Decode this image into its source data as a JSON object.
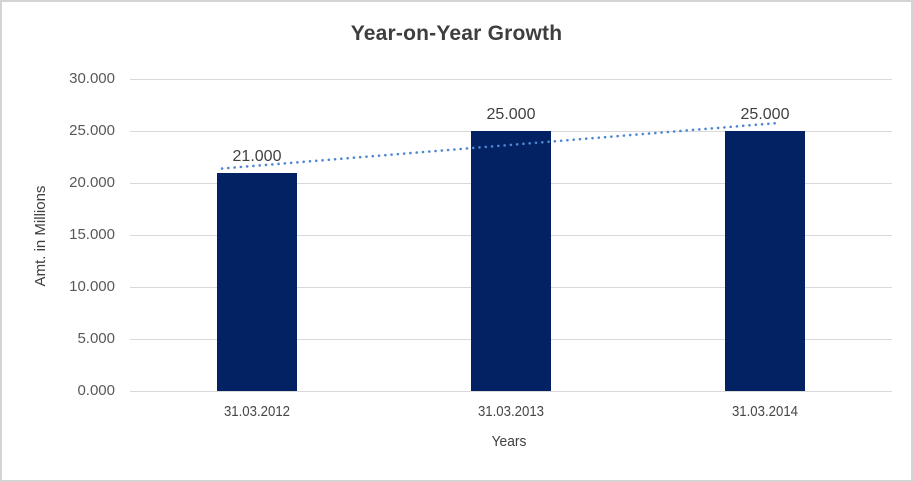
{
  "chart_data": {
    "type": "bar",
    "title": "Year-on-Year Growth",
    "xlabel": "Years",
    "ylabel": "Amt. in Millions",
    "categories": [
      "31.03.2012",
      "31.03.2013",
      "31.03.2014"
    ],
    "values": [
      21.0,
      25.0,
      25.0
    ],
    "data_labels": [
      "21.000",
      "25.000",
      "25.000"
    ],
    "y_ticks": [
      "30.000",
      "25.000",
      "20.000",
      "15.000",
      "10.000",
      "5.000",
      "0.000"
    ],
    "ylim": [
      0,
      30
    ],
    "y_tick_step": 5,
    "grid": true,
    "legend": "none",
    "trendline": {
      "type": "linear",
      "style": "dotted",
      "fitted_values": [
        21.667,
        23.667,
        25.667
      ],
      "color": "#4e86d0"
    },
    "colors": {
      "bar": "#032264",
      "gridline": "#d9d9d9",
      "border": "#d4d4d4",
      "background": "#ffffff",
      "title_text": "#3e3e3e",
      "tick_text": "#595959",
      "axis_title_text": "#404040",
      "data_label_text": "#404040"
    }
  }
}
